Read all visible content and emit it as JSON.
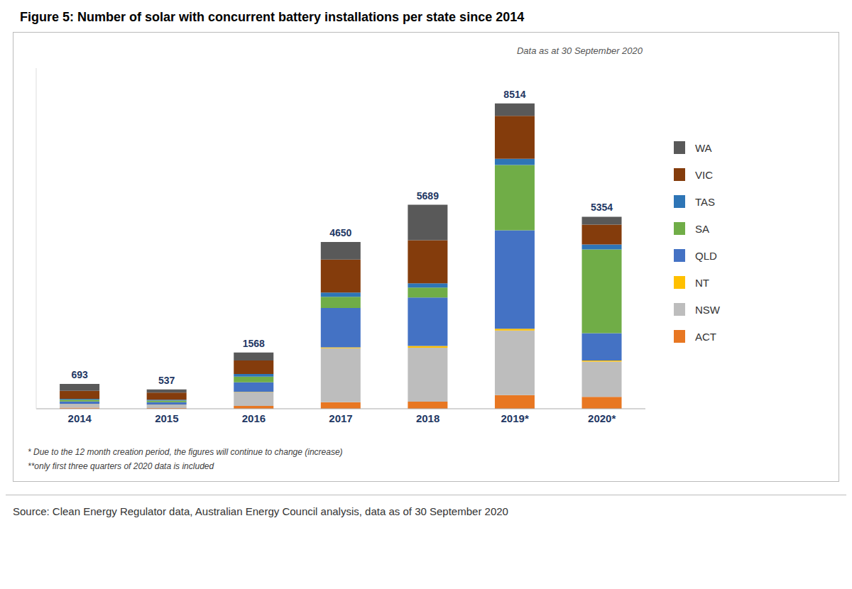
{
  "chart_data": {
    "type": "bar",
    "title": "Figure 5: Number of solar with concurrent battery installations per state since 2014",
    "categories": [
      "2014",
      "2015",
      "2016",
      "2017",
      "2018",
      "2019*",
      "2020*"
    ],
    "stacked": true,
    "series": [
      {
        "name": "ACT",
        "color": "#E87722",
        "values": [
          30,
          20,
          80,
          185,
          200,
          380,
          332.0119
        ]
      },
      {
        "name": "NSW",
        "color": "#BDBDBD",
        "values": [
          100,
          90,
          380,
          1500,
          1500,
          1800,
          983.7391
        ]
      },
      {
        "name": "NT",
        "color": "#FFC000",
        "values": [
          4,
          3,
          8,
          25,
          50,
          50,
          30.7418
        ]
      },
      {
        "name": "QLD",
        "color": "#4472C4",
        "values": [
          70,
          70,
          270,
          1100,
          1350,
          2750,
          762.3978
        ]
      },
      {
        "name": "SA",
        "color": "#70AD47",
        "values": [
          50,
          45,
          160,
          310,
          280,
          1820,
          2336.3803
        ]
      },
      {
        "name": "TAS",
        "color": "#2E75B6",
        "values": [
          25,
          25,
          70,
          120,
          120,
          170,
          135.2641
        ]
      },
      {
        "name": "VIC",
        "color": "#843C0C",
        "values": [
          220,
          195,
          380,
          920,
          1200,
          1200,
          553.3532
        ]
      },
      {
        "name": "WA",
        "color": "#595959",
        "values": [
          194,
          89,
          220,
          490,
          989,
          344,
          220.1116
        ]
      }
    ],
    "totals": [
      693,
      537,
      1568,
      4650,
      5689,
      8514,
      5354
    ],
    "ylim": [
      0,
      9500
    ],
    "tick_labels": "x",
    "grid": false,
    "legend": "right",
    "annotations": [
      "Data as at 30 September 2020"
    ],
    "footnotes": [
      "* Due to the 12 month creation period, the figures will continue to change (increase)",
      "**only first three quarters of 2020 data is included"
    ],
    "source": "Source: Clean Energy Regulator data, Australian Energy Council analysis, data as of 30 September 2020"
  }
}
